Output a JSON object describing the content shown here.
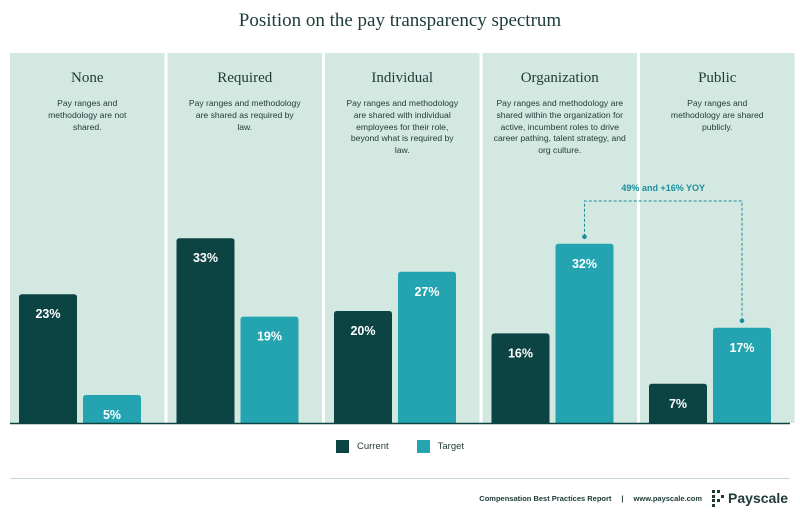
{
  "colors": {
    "panel": "#d3e8e1",
    "current": "#0c4343",
    "target": "#24a3b0",
    "annotation": "#1b8e9c",
    "axis": "#0c4343"
  },
  "chart_data": {
    "type": "bar",
    "title": "Position on the pay transparency spectrum",
    "categories": [
      "None",
      "Required",
      "Individual",
      "Organization",
      "Public"
    ],
    "descriptions": [
      "Pay ranges and methodology are not shared.",
      "Pay ranges and methodology are shared as required by law.",
      "Pay ranges and methodology are shared with individual employees for their role, beyond what is required by law.",
      "Pay ranges and methodology are shared within the organization for active, incumbent roles to drive career pathing, talent strategy, and org culture.",
      "Pay ranges and methodology are shared publicly."
    ],
    "series": [
      {
        "name": "Current",
        "values": [
          23,
          33,
          20,
          16,
          7
        ]
      },
      {
        "name": "Target",
        "values": [
          5,
          19,
          27,
          32,
          17
        ]
      }
    ],
    "value_suffix": "%",
    "ylim": [
      0,
      40
    ],
    "annotation": {
      "text": "49% and +16% YOY",
      "from_category": "Organization",
      "to_category": "Public",
      "series": "Target"
    },
    "legend": [
      "Current",
      "Target"
    ],
    "legend_position": "bottom-center",
    "grid": false
  },
  "footer": {
    "report": "Compensation Best Practices Report",
    "separator": "|",
    "url": "www.payscale.com",
    "brand": "Payscale"
  }
}
